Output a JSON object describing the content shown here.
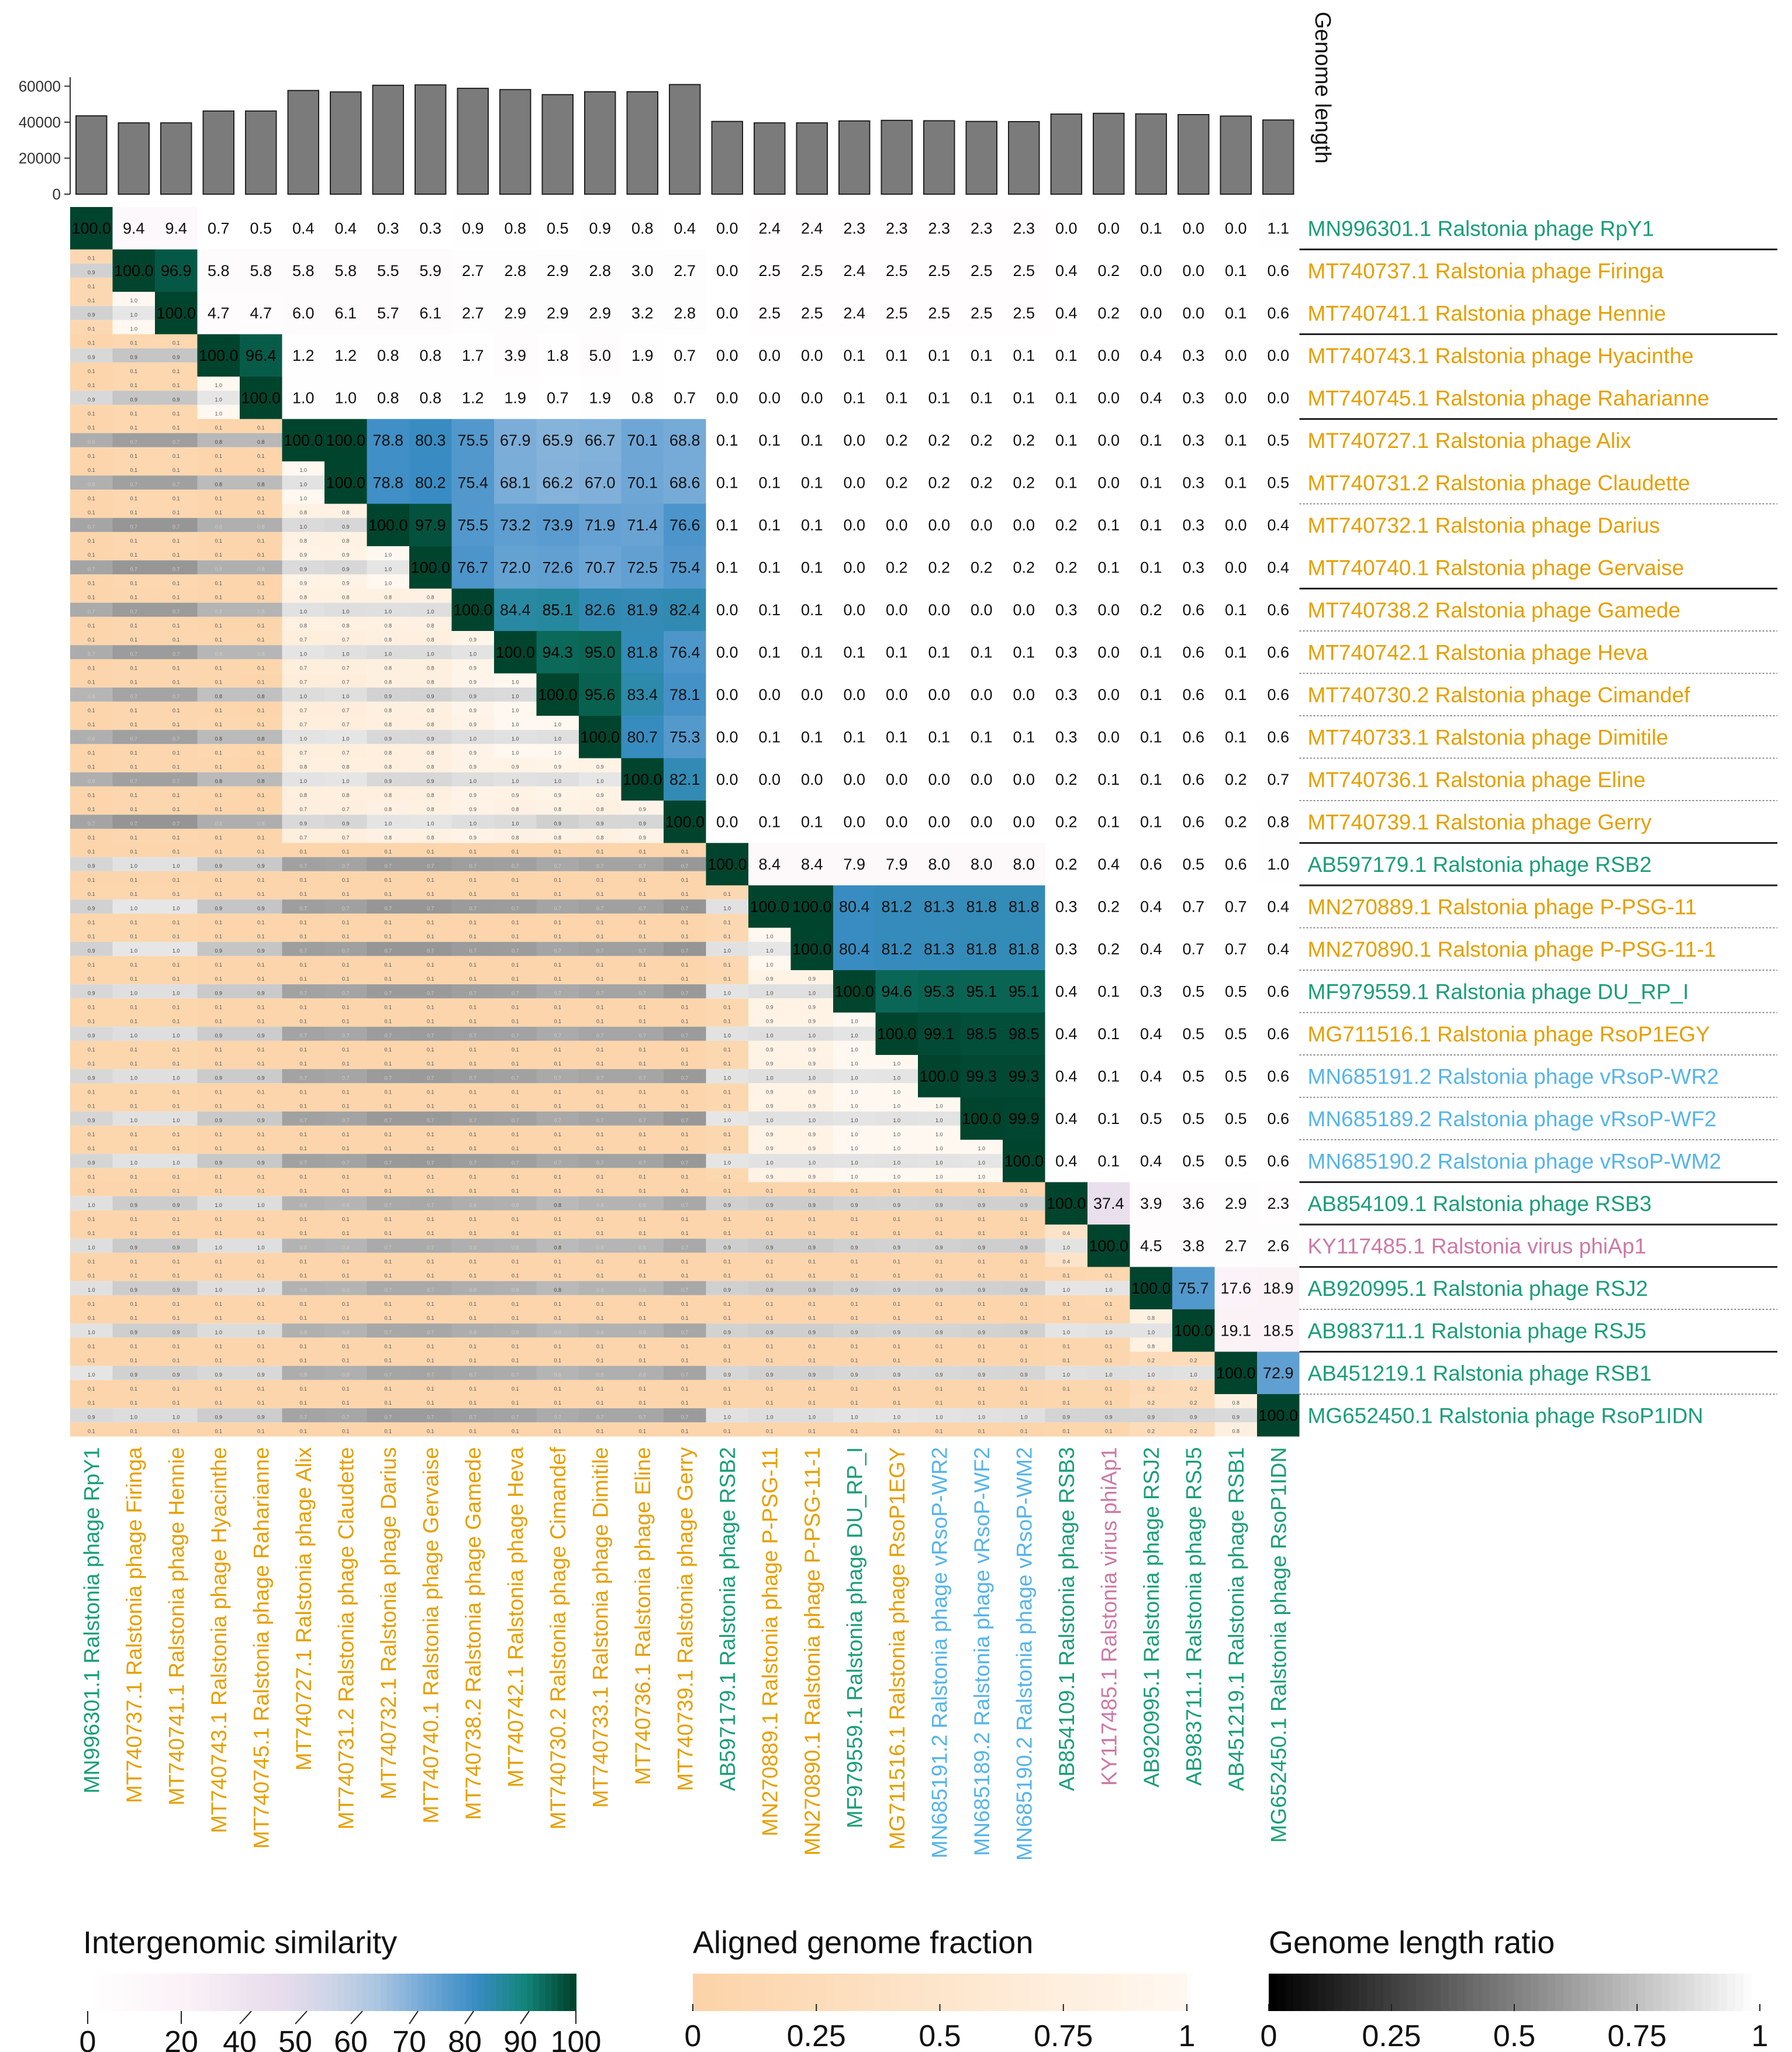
{
  "chart_data": {
    "type": "heatmap",
    "title": "",
    "y_label_right": "Genome length",
    "genome_length_axis": {
      "ticks": [
        0,
        20000,
        40000,
        60000
      ],
      "ylim": [
        0,
        65000
      ]
    },
    "genomes": [
      {
        "id": "MN996301.1",
        "name": "MN996301.1 Ralstonia phage RpY1",
        "short": "RpY1",
        "color": "#1a9e77",
        "length": 43500
      },
      {
        "id": "MT740737.1",
        "name": "MT740737.1 Ralstonia phage Firinga",
        "short": "Firinga",
        "color": "#e69f00",
        "length": 39600
      },
      {
        "id": "MT740741.1",
        "name": "MT740741.1 Ralstonia phage Hennie",
        "short": "Hennie",
        "color": "#e69f00",
        "length": 39600
      },
      {
        "id": "MT740743.1",
        "name": "MT740743.1 Ralstonia phage Hyacinthe",
        "short": "Hyacinthe",
        "color": "#e69f00",
        "length": 46200
      },
      {
        "id": "MT740745.1",
        "name": "MT740745.1 Ralstonia phage Raharianne",
        "short": "Raharianne",
        "color": "#e69f00",
        "length": 46200
      },
      {
        "id": "MT740727.1",
        "name": "MT740727.1 Ralstonia phage Alix",
        "short": "Alix",
        "color": "#e69f00",
        "length": 57600
      },
      {
        "id": "MT740731.2",
        "name": "MT740731.2 Ralstonia phage Claudette",
        "short": "Claudette",
        "color": "#e69f00",
        "length": 56800
      },
      {
        "id": "MT740732.1",
        "name": "MT740732.1 Ralstonia phage Darius",
        "short": "Darius",
        "color": "#e69f00",
        "length": 60500
      },
      {
        "id": "MT740740.1",
        "name": "MT740740.1 Ralstonia phage Gervaise",
        "short": "Gervaise",
        "color": "#e69f00",
        "length": 60700
      },
      {
        "id": "MT740738.2",
        "name": "MT740738.2 Ralstonia phage Gamede",
        "short": "Gamede",
        "color": "#e69f00",
        "length": 58800
      },
      {
        "id": "MT740742.1",
        "name": "MT740742.1 Ralstonia phage Heva",
        "short": "Heva",
        "color": "#e69f00",
        "length": 58100
      },
      {
        "id": "MT740730.2",
        "name": "MT740730.2 Ralstonia phage Cimandef",
        "short": "Cimandef",
        "color": "#e69f00",
        "length": 55300
      },
      {
        "id": "MT740733.1",
        "name": "MT740733.1 Ralstonia phage Dimitile",
        "short": "Dimitile",
        "color": "#e69f00",
        "length": 56900
      },
      {
        "id": "MT740736.1",
        "name": "MT740736.1 Ralstonia phage Eline",
        "short": "Eline",
        "color": "#e69f00",
        "length": 56900
      },
      {
        "id": "MT740739.1",
        "name": "MT740739.1 Ralstonia phage Gerry",
        "short": "Gerry",
        "color": "#e69f00",
        "length": 60900
      },
      {
        "id": "AB597179.1",
        "name": "AB597179.1 Ralstonia phage RSB2",
        "short": "RSB2",
        "color": "#1a9e77",
        "length": 40400
      },
      {
        "id": "MN270889.1",
        "name": "MN270889.1 Ralstonia phage P-PSG-11",
        "short": "P-PSG-11",
        "color": "#e69f00",
        "length": 39600
      },
      {
        "id": "MN270890.1",
        "name": "MN270890.1 Ralstonia phage P-PSG-11-1",
        "short": "P-PSG-11-1",
        "color": "#e69f00",
        "length": 39600
      },
      {
        "id": "MF979559.1",
        "name": "MF979559.1 Ralstonia phage DU_RP_I",
        "short": "DU_RP_I",
        "color": "#1a9e77",
        "length": 40700
      },
      {
        "id": "MG711516.1",
        "name": "MG711516.1 Ralstonia phage RsoP1EGY",
        "short": "RsoP1EGY",
        "color": "#e69f00",
        "length": 41000
      },
      {
        "id": "MN685191.2",
        "name": "MN685191.2 Ralstonia phage vRsoP-WR2",
        "short": "vRsoP-WR2",
        "color": "#56b4e9",
        "length": 40800
      },
      {
        "id": "MN685189.2",
        "name": "MN685189.2 Ralstonia phage vRsoP-WF2",
        "short": "vRsoP-WF2",
        "color": "#56b4e9",
        "length": 40400
      },
      {
        "id": "MN685190.2",
        "name": "MN685190.2 Ralstonia phage vRsoP-WM2",
        "short": "vRsoP-WM2",
        "color": "#56b4e9",
        "length": 40300
      },
      {
        "id": "AB854109.1",
        "name": "AB854109.1 Ralstonia phage RSB3",
        "short": "RSB3",
        "color": "#1a9e77",
        "length": 44500
      },
      {
        "id": "KY117485.1",
        "name": "KY117485.1 Ralstonia virus phiAp1",
        "short": "phiAp1",
        "color": "#cc79a7",
        "length": 44900
      },
      {
        "id": "AB920995.1",
        "name": "AB920995.1 Ralstonia phage RSJ2",
        "short": "RSJ2",
        "color": "#1a9e77",
        "length": 44600
      },
      {
        "id": "AB983711.1",
        "name": "AB983711.1 Ralstonia phage RSJ5",
        "short": "RSJ5",
        "color": "#1a9e77",
        "length": 44200
      },
      {
        "id": "AB451219.1",
        "name": "AB451219.1 Ralstonia phage RSB1",
        "short": "RSB1",
        "color": "#1a9e77",
        "length": 43400
      },
      {
        "id": "MG652450.1",
        "name": "MG652450.1 Ralstonia phage RsoP1IDN",
        "short": "RsoP1IDN",
        "color": "#1a9e77",
        "length": 41200
      }
    ],
    "similarity_rows": [
      [
        100.0,
        9.4,
        9.4,
        0.7,
        0.5,
        0.4,
        0.4,
        0.3,
        0.3,
        0.9,
        0.8,
        0.5,
        0.9,
        0.8,
        0.4,
        0.0,
        2.4,
        2.4,
        2.3,
        2.3,
        2.3,
        2.3,
        2.3,
        0.0,
        0.0,
        0.1,
        0.0,
        0.0,
        1.1
      ],
      [
        100.0,
        96.9,
        5.8,
        5.8,
        5.8,
        5.8,
        5.5,
        5.9,
        2.7,
        2.8,
        2.9,
        2.8,
        3.0,
        2.7,
        0.0,
        2.5,
        2.5,
        2.4,
        2.5,
        2.5,
        2.5,
        2.5,
        0.4,
        0.2,
        0.0,
        0.0,
        0.1,
        0.6
      ],
      [
        100.0,
        4.7,
        4.7,
        6.0,
        6.1,
        5.7,
        6.1,
        2.7,
        2.9,
        2.9,
        2.9,
        3.2,
        2.8,
        0.0,
        2.5,
        2.5,
        2.4,
        2.5,
        2.5,
        2.5,
        2.5,
        0.4,
        0.2,
        0.0,
        0.0,
        0.1,
        0.6
      ],
      [
        100.0,
        96.4,
        1.2,
        1.2,
        0.8,
        0.8,
        1.7,
        3.9,
        1.8,
        5.0,
        1.9,
        0.7,
        0.0,
        0.0,
        0.0,
        0.1,
        0.1,
        0.1,
        0.1,
        0.1,
        0.1,
        0.0,
        0.4,
        0.3,
        0.0,
        0.0
      ],
      [
        100.0,
        1.0,
        1.0,
        0.8,
        0.8,
        1.2,
        1.9,
        0.7,
        1.9,
        0.8,
        0.7,
        0.0,
        0.0,
        0.0,
        0.1,
        0.1,
        0.1,
        0.1,
        0.1,
        0.1,
        0.0,
        0.4,
        0.3,
        0.0,
        0.0
      ],
      [
        100.0,
        100.0,
        78.8,
        80.3,
        75.5,
        67.9,
        65.9,
        66.7,
        70.1,
        68.8,
        0.1,
        0.1,
        0.1,
        0.0,
        0.2,
        0.2,
        0.2,
        0.2,
        0.1,
        0.0,
        0.1,
        0.3,
        0.1,
        0.5
      ],
      [
        100.0,
        78.8,
        80.2,
        75.4,
        68.1,
        66.2,
        67.0,
        70.1,
        68.6,
        0.1,
        0.1,
        0.1,
        0.0,
        0.2,
        0.2,
        0.2,
        0.2,
        0.1,
        0.0,
        0.1,
        0.3,
        0.1,
        0.5
      ],
      [
        100.0,
        97.9,
        75.5,
        73.2,
        73.9,
        71.9,
        71.4,
        76.6,
        0.1,
        0.1,
        0.1,
        0.0,
        0.0,
        0.0,
        0.0,
        0.0,
        0.2,
        0.1,
        0.1,
        0.3,
        0.0,
        0.4
      ],
      [
        100.0,
        76.7,
        72.0,
        72.6,
        70.7,
        72.5,
        75.4,
        0.1,
        0.1,
        0.1,
        0.0,
        0.2,
        0.2,
        0.2,
        0.2,
        0.2,
        0.1,
        0.1,
        0.3,
        0.0,
        0.4
      ],
      [
        100.0,
        84.4,
        85.1,
        82.6,
        81.9,
        82.4,
        0.0,
        0.1,
        0.1,
        0.0,
        0.0,
        0.0,
        0.0,
        0.0,
        0.3,
        0.0,
        0.2,
        0.6,
        0.1,
        0.6
      ],
      [
        100.0,
        94.3,
        95.0,
        81.8,
        76.4,
        0.0,
        0.1,
        0.1,
        0.1,
        0.1,
        0.1,
        0.1,
        0.1,
        0.3,
        0.0,
        0.1,
        0.6,
        0.1,
        0.6
      ],
      [
        100.0,
        95.6,
        83.4,
        78.1,
        0.0,
        0.0,
        0.0,
        0.0,
        0.0,
        0.0,
        0.0,
        0.0,
        0.3,
        0.0,
        0.1,
        0.6,
        0.1,
        0.6
      ],
      [
        100.0,
        80.7,
        75.3,
        0.0,
        0.1,
        0.1,
        0.1,
        0.1,
        0.1,
        0.1,
        0.1,
        0.3,
        0.0,
        0.1,
        0.6,
        0.1,
        0.6
      ],
      [
        100.0,
        82.1,
        0.0,
        0.0,
        0.0,
        0.0,
        0.0,
        0.0,
        0.0,
        0.0,
        0.2,
        0.1,
        0.1,
        0.6,
        0.2,
        0.7
      ],
      [
        100.0,
        0.0,
        0.1,
        0.1,
        0.0,
        0.0,
        0.0,
        0.0,
        0.0,
        0.2,
        0.1,
        0.1,
        0.6,
        0.2,
        0.8
      ],
      [
        100.0,
        8.4,
        8.4,
        7.9,
        7.9,
        8.0,
        8.0,
        8.0,
        0.2,
        0.4,
        0.6,
        0.5,
        0.6,
        1.0
      ],
      [
        100.0,
        100.0,
        80.4,
        81.2,
        81.3,
        81.8,
        81.8,
        0.3,
        0.2,
        0.4,
        0.7,
        0.7,
        0.4
      ],
      [
        100.0,
        80.4,
        81.2,
        81.3,
        81.8,
        81.8,
        0.3,
        0.2,
        0.4,
        0.7,
        0.7,
        0.4
      ],
      [
        100.0,
        94.6,
        95.3,
        95.1,
        95.1,
        0.4,
        0.1,
        0.3,
        0.5,
        0.5,
        0.6
      ],
      [
        100.0,
        99.1,
        98.5,
        98.5,
        0.4,
        0.1,
        0.4,
        0.5,
        0.5,
        0.6
      ],
      [
        100.0,
        99.3,
        99.3,
        0.4,
        0.1,
        0.4,
        0.5,
        0.5,
        0.6
      ],
      [
        100.0,
        99.9,
        0.4,
        0.1,
        0.5,
        0.5,
        0.5,
        0.6
      ],
      [
        100.0,
        0.4,
        0.1,
        0.4,
        0.5,
        0.5,
        0.6
      ],
      [
        100.0,
        37.4,
        3.9,
        3.6,
        2.9,
        2.3
      ],
      [
        100.0,
        4.5,
        3.8,
        2.7,
        2.6
      ],
      [
        100.0,
        75.7,
        17.6,
        18.9
      ],
      [
        100.0,
        19.1,
        18.5
      ],
      [
        100.0,
        72.9
      ],
      [
        100.0
      ]
    ],
    "clade_separators": [
      {
        "after_row": 0,
        "style": "solid"
      },
      {
        "after_row": 2,
        "style": "solid"
      },
      {
        "after_row": 4,
        "style": "solid"
      },
      {
        "after_row": 6,
        "style": "dotted"
      },
      {
        "after_row": 8,
        "style": "solid"
      },
      {
        "after_row": 9,
        "style": "dotted"
      },
      {
        "after_row": 10,
        "style": "dotted"
      },
      {
        "after_row": 11,
        "style": "dotted"
      },
      {
        "after_row": 12,
        "style": "dotted"
      },
      {
        "after_row": 13,
        "style": "dotted"
      },
      {
        "after_row": 14,
        "style": "solid"
      },
      {
        "after_row": 15,
        "style": "solid"
      },
      {
        "after_row": 16,
        "style": "dotted"
      },
      {
        "after_row": 17,
        "style": "dotted"
      },
      {
        "after_row": 18,
        "style": "dotted"
      },
      {
        "after_row": 19,
        "style": "dotted"
      },
      {
        "after_row": 20,
        "style": "dotted"
      },
      {
        "after_row": 21,
        "style": "dotted"
      },
      {
        "after_row": 22,
        "style": "solid"
      },
      {
        "after_row": 23,
        "style": "solid"
      },
      {
        "after_row": 24,
        "style": "solid"
      },
      {
        "after_row": 25,
        "style": "dotted"
      },
      {
        "after_row": 26,
        "style": "solid"
      },
      {
        "after_row": 27,
        "style": "dotted"
      }
    ],
    "lower_triangle_note": "Lower triangle cells show aligned genome fraction (two sub-rows) and genome length ratio (middle sub-row); small values approximated.",
    "legends": [
      {
        "title": "Intergenomic similarity",
        "ticks": [
          "0",
          "20",
          "40",
          "50",
          "60",
          "70",
          "80",
          "90",
          "100"
        ]
      },
      {
        "title": "Aligned genome fraction",
        "ticks": [
          "0",
          "0.25",
          "0.5",
          "0.75",
          "1"
        ]
      },
      {
        "title": "Genome length ratio",
        "ticks": [
          "0",
          "0.25",
          "0.5",
          "0.75",
          "1"
        ]
      }
    ]
  }
}
